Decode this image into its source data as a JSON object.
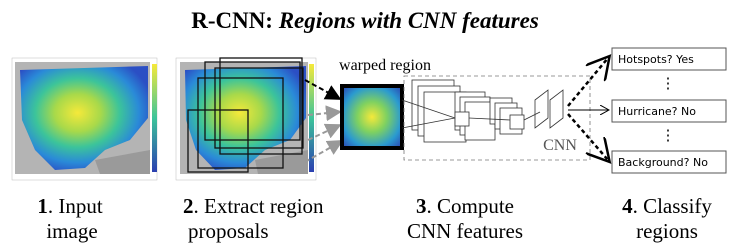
{
  "title": {
    "prefix": "R-CNN:",
    "emphasis": "Regions with CNN features"
  },
  "warped_label": "warped region",
  "cnn_label": "CNN",
  "outputs": [
    "Hotspots? Yes",
    "Hurricane? No",
    "Background? No"
  ],
  "ellipses": [
    "⋮",
    "⋮"
  ],
  "steps": [
    {
      "number": "1",
      "first": ". Input",
      "second": "image"
    },
    {
      "number": "2",
      "first": ". Extract region",
      "second": "proposals"
    },
    {
      "number": "3",
      "first": ". Compute",
      "second": "CNN features"
    },
    {
      "number": "4",
      "first": ". Classify",
      "second": "regions"
    }
  ]
}
